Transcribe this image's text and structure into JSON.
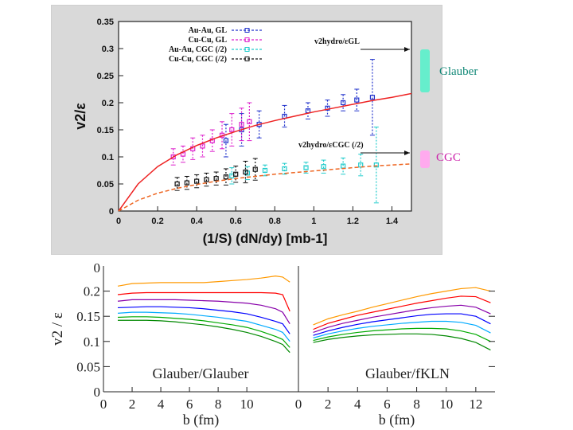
{
  "chart_data": [
    {
      "type": "scatter",
      "title": "",
      "xlabel": "(1/S) (dN/dy)  [mb-1]",
      "ylabel": "v2/ε",
      "xlim": [
        0,
        1.5
      ],
      "ylim": [
        0,
        0.35
      ],
      "xticks": [
        "0",
        "0.2",
        "0.4",
        "0.6",
        "0.8",
        "1",
        "1.2",
        "1.4"
      ],
      "yticks": [
        "0",
        "0.05",
        "0.1",
        "0.15",
        "0.2",
        "0.25",
        "0.3",
        "0.35"
      ],
      "legend": [
        "Au-Au, GL",
        "Cu-Cu, GL",
        "Au-Au, CGC (/2)",
        "Cu-Cu, CGC (/2)"
      ],
      "legend_position": "top-left",
      "annotations": [
        "v2hydro/εGL",
        "v2hydro/εCGC (/2)"
      ],
      "series": [
        {
          "name": "Au-Au, GL",
          "color": "#2233cc",
          "x": [
            0.55,
            0.63,
            0.72,
            0.85,
            0.97,
            1.07,
            1.15,
            1.22,
            1.3
          ],
          "y": [
            0.13,
            0.15,
            0.16,
            0.175,
            0.185,
            0.19,
            0.2,
            0.205,
            0.21
          ],
          "err": [
            0.03,
            0.03,
            0.025,
            0.02,
            0.015,
            0.015,
            0.015,
            0.02,
            0.07
          ]
        },
        {
          "name": "Cu-Cu, GL",
          "color": "#dd22cc",
          "x": [
            0.28,
            0.33,
            0.38,
            0.43,
            0.48,
            0.53,
            0.58,
            0.63,
            0.67
          ],
          "y": [
            0.1,
            0.105,
            0.115,
            0.12,
            0.13,
            0.14,
            0.15,
            0.16,
            0.165
          ],
          "err": [
            0.015,
            0.015,
            0.02,
            0.02,
            0.02,
            0.025,
            0.03,
            0.03,
            0.035
          ]
        },
        {
          "name": "Au-Au, CGC (/2)",
          "color": "#22cccc",
          "x": [
            0.58,
            0.66,
            0.75,
            0.85,
            0.96,
            1.05,
            1.15,
            1.24,
            1.32
          ],
          "y": [
            0.065,
            0.07,
            0.075,
            0.078,
            0.08,
            0.082,
            0.083,
            0.085,
            0.085
          ],
          "err": [
            0.015,
            0.012,
            0.01,
            0.01,
            0.01,
            0.012,
            0.015,
            0.02,
            0.07
          ]
        },
        {
          "name": "Cu-Cu, CGC (/2)",
          "color": "#111111",
          "x": [
            0.3,
            0.35,
            0.4,
            0.45,
            0.5,
            0.55,
            0.6,
            0.65,
            0.7
          ],
          "y": [
            0.05,
            0.052,
            0.055,
            0.058,
            0.06,
            0.063,
            0.068,
            0.072,
            0.077
          ],
          "err": [
            0.012,
            0.012,
            0.012,
            0.012,
            0.012,
            0.015,
            0.015,
            0.02,
            0.02
          ]
        },
        {
          "name": "v2hydro/εGL fit",
          "color": "#ee2222",
          "kind": "line",
          "x": [
            0,
            0.1,
            0.2,
            0.3,
            0.4,
            0.5,
            0.6,
            0.7,
            0.8,
            0.9,
            1.0,
            1.1,
            1.2,
            1.3,
            1.4,
            1.5
          ],
          "y": [
            0,
            0.05,
            0.082,
            0.104,
            0.121,
            0.135,
            0.147,
            0.158,
            0.167,
            0.175,
            0.183,
            0.19,
            0.197,
            0.204,
            0.21,
            0.217
          ]
        },
        {
          "name": "v2hydro/εCGC fit",
          "color": "#ee6622",
          "kind": "dashline",
          "x": [
            0,
            0.1,
            0.2,
            0.3,
            0.4,
            0.5,
            0.6,
            0.7,
            0.8,
            0.9,
            1.0,
            1.1,
            1.2,
            1.3,
            1.4,
            1.5
          ],
          "y": [
            0,
            0.02,
            0.033,
            0.042,
            0.049,
            0.055,
            0.06,
            0.064,
            0.068,
            0.071,
            0.074,
            0.077,
            0.08,
            0.083,
            0.085,
            0.087
          ]
        }
      ]
    },
    {
      "type": "line",
      "title": "Glauber/Glauber",
      "xlabel": "b (fm)",
      "ylabel": "v2 / ε",
      "xlim": [
        0,
        13
      ],
      "ylim": [
        0,
        0.25
      ],
      "xticks": [
        "0",
        "2",
        "4",
        "6",
        "8",
        "10"
      ],
      "yticks": [
        "0",
        "0.05",
        "0.1",
        "0.15",
        "0.2"
      ],
      "top_tick": "0",
      "x": [
        1,
        2,
        3,
        4,
        5,
        6,
        7,
        8,
        9,
        10,
        11,
        12,
        12.5,
        13
      ],
      "series": [
        {
          "name": "c1",
          "color": "#ff9900",
          "values": [
            0.21,
            0.215,
            0.216,
            0.217,
            0.217,
            0.217,
            0.217,
            0.219,
            0.221,
            0.223,
            0.226,
            0.23,
            0.228,
            0.218
          ]
        },
        {
          "name": "c2",
          "color": "#ff0000",
          "values": [
            0.193,
            0.196,
            0.197,
            0.197,
            0.197,
            0.197,
            0.197,
            0.197,
            0.197,
            0.197,
            0.197,
            0.196,
            0.193,
            0.16
          ]
        },
        {
          "name": "c3",
          "color": "#8800aa",
          "values": [
            0.18,
            0.183,
            0.183,
            0.183,
            0.183,
            0.182,
            0.181,
            0.18,
            0.178,
            0.176,
            0.172,
            0.165,
            0.158,
            0.135
          ]
        },
        {
          "name": "c4",
          "color": "#0000ff",
          "values": [
            0.167,
            0.168,
            0.169,
            0.169,
            0.168,
            0.167,
            0.165,
            0.162,
            0.159,
            0.155,
            0.148,
            0.14,
            0.135,
            0.115
          ]
        },
        {
          "name": "c5",
          "color": "#00aaff",
          "values": [
            0.156,
            0.158,
            0.158,
            0.157,
            0.156,
            0.154,
            0.151,
            0.148,
            0.144,
            0.14,
            0.132,
            0.124,
            0.118,
            0.1
          ]
        },
        {
          "name": "c6",
          "color": "#00aa00",
          "values": [
            0.148,
            0.149,
            0.149,
            0.148,
            0.146,
            0.144,
            0.141,
            0.137,
            0.133,
            0.128,
            0.12,
            0.11,
            0.104,
            0.088
          ]
        },
        {
          "name": "c7",
          "color": "#008800",
          "values": [
            0.142,
            0.142,
            0.142,
            0.141,
            0.139,
            0.136,
            0.133,
            0.129,
            0.124,
            0.118,
            0.11,
            0.1,
            0.094,
            0.078
          ]
        }
      ]
    },
    {
      "type": "line",
      "title": "Glauber/fKLN",
      "xlabel": "b (fm)",
      "ylabel": "",
      "xlim": [
        0,
        13
      ],
      "ylim": [
        0,
        0.25
      ],
      "xticks": [
        "0",
        "2",
        "4",
        "6",
        "8",
        "10",
        "12"
      ],
      "x": [
        1,
        2,
        3,
        4,
        5,
        6,
        7,
        8,
        9,
        10,
        11,
        12,
        13
      ],
      "series": [
        {
          "name": "c1",
          "color": "#ff9900",
          "values": [
            0.133,
            0.145,
            0.153,
            0.16,
            0.168,
            0.175,
            0.182,
            0.189,
            0.195,
            0.2,
            0.205,
            0.207,
            0.2
          ]
        },
        {
          "name": "c2",
          "color": "#ff0000",
          "values": [
            0.124,
            0.136,
            0.144,
            0.152,
            0.158,
            0.164,
            0.17,
            0.176,
            0.181,
            0.186,
            0.19,
            0.189,
            0.177
          ]
        },
        {
          "name": "c3",
          "color": "#8800aa",
          "values": [
            0.118,
            0.128,
            0.136,
            0.142,
            0.148,
            0.153,
            0.158,
            0.163,
            0.167,
            0.17,
            0.172,
            0.168,
            0.155
          ]
        },
        {
          "name": "c4",
          "color": "#0000ff",
          "values": [
            0.112,
            0.121,
            0.128,
            0.134,
            0.139,
            0.143,
            0.147,
            0.151,
            0.154,
            0.155,
            0.155,
            0.15,
            0.135
          ]
        },
        {
          "name": "c5",
          "color": "#00aaff",
          "values": [
            0.107,
            0.115,
            0.121,
            0.126,
            0.13,
            0.133,
            0.136,
            0.138,
            0.14,
            0.14,
            0.138,
            0.132,
            0.117
          ]
        },
        {
          "name": "c6",
          "color": "#00aa00",
          "values": [
            0.102,
            0.109,
            0.114,
            0.118,
            0.121,
            0.123,
            0.125,
            0.126,
            0.126,
            0.125,
            0.121,
            0.114,
            0.1
          ]
        },
        {
          "name": "c7",
          "color": "#008800",
          "values": [
            0.098,
            0.104,
            0.108,
            0.111,
            0.113,
            0.114,
            0.115,
            0.115,
            0.114,
            0.111,
            0.106,
            0.098,
            0.083
          ]
        }
      ]
    }
  ],
  "labels": {
    "glauber": "Glauber",
    "cgc": "CGC"
  },
  "colors": {
    "glauber_bar": "#66eecc",
    "cgc_bar": "#ffaaee",
    "glauber_text": "#118877",
    "cgc_text": "#cc22aa"
  }
}
